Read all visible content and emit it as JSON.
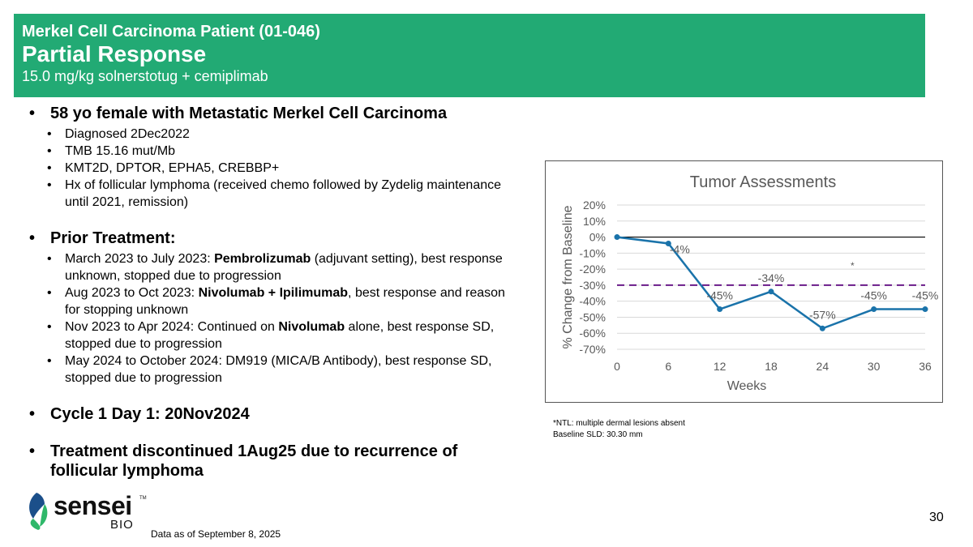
{
  "header": {
    "patient_title": "Merkel Cell Carcinoma Patient (01-046)",
    "response": "Partial Response",
    "regimen": "15.0 mg/kg solnerstotug + cemiplimab"
  },
  "bullets": {
    "profile": {
      "title": "58 yo female with Metastatic Merkel Cell Carcinoma",
      "items": [
        "Diagnosed 2Dec2022",
        "TMB 15.16 mut/Mb",
        "KMT2D, DPTOR, EPHA5, CREBBP+",
        "Hx of follicular lymphoma (received chemo followed by Zydelig maintenance until 2021, remission)"
      ]
    },
    "prior": {
      "title": "Prior Treatment:",
      "items": [
        {
          "pre": "March 2023 to July 2023: ",
          "bold": "Pembrolizumab",
          "post": " (adjuvant setting), best response unknown, stopped due to progression"
        },
        {
          "pre": "Aug 2023 to Oct 2023: ",
          "bold": "Nivolumab + Ipilimumab",
          "post": ", best response and reason for stopping unknown"
        },
        {
          "pre": "Nov 2023 to Apr 2024: Continued on ",
          "bold": "Nivolumab",
          "post": " alone, best response SD, stopped due to progression"
        },
        {
          "pre": "May 2024 to October 2024: DM919 (MICA/B Antibody), best response SD, stopped due to progression",
          "bold": "",
          "post": ""
        }
      ]
    },
    "cycle": "Cycle 1 Day 1: 20Nov2024",
    "discontinued": "Treatment discontinued 1Aug25 due to recurrence of follicular lymphoma"
  },
  "chart_data": {
    "type": "line",
    "title": "Tumor Assessments",
    "xlabel": "Weeks",
    "ylabel": "% Change from Baseline",
    "x": [
      0,
      6,
      12,
      18,
      24,
      30,
      36
    ],
    "series": [
      {
        "name": "% Change from Baseline",
        "values": [
          0,
          -4,
          -45,
          -34,
          -57,
          -45,
          -45
        ]
      }
    ],
    "point_labels": [
      "",
      "-4%",
      "-45%",
      "-34%",
      "-57%",
      "-45%",
      "-45%"
    ],
    "ylim": [
      -70,
      20
    ],
    "yticks": [
      20,
      10,
      0,
      -10,
      -20,
      -30,
      -40,
      -50,
      -60,
      -70
    ],
    "ytick_labels": [
      "20%",
      "10%",
      "0%",
      "-10%",
      "-20%",
      "-30%",
      "-40%",
      "-50%",
      "-60%",
      "-70%"
    ],
    "xtick_labels": [
      "0",
      "6",
      "12",
      "18",
      "24",
      "30",
      "36"
    ],
    "threshold": -30,
    "annotation": {
      "text": "*",
      "x": 27.5,
      "y": -20
    },
    "colors": {
      "line": "#1a73aa",
      "threshold": "#6a1b8a",
      "zero": "#000000",
      "grid": "#d9d9d9",
      "text": "#595959"
    }
  },
  "notes": {
    "ntl": "*NTL: multiple dermal lesions absent",
    "baseline": "Baseline SLD: 30.30 mm"
  },
  "footer": {
    "date": "Data as of September 8, 2025",
    "page": "30",
    "logo_word": "sensei",
    "logo_tm": "TM",
    "logo_sub": "BIO",
    "logo_colors": {
      "dark": "#1b4f8a",
      "light": "#2fb86a"
    }
  }
}
